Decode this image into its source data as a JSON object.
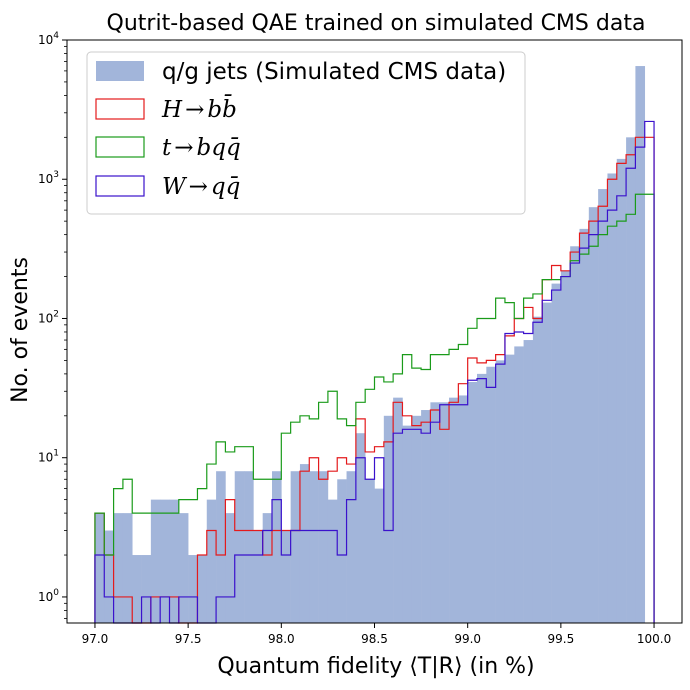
{
  "chart_data": {
    "type": "histogram",
    "title": "Qutrit-based QAE trained on simulated CMS data",
    "xlabel": "Quantum fidelity ⟨T|R⟩ (in %)",
    "ylabel": "No. of events",
    "xlim": [
      96.85,
      100.15
    ],
    "ylim": [
      0.65,
      10000
    ],
    "yscale": "log",
    "x_ticks": [
      "97.0",
      "97.5",
      "98.0",
      "98.5",
      "99.0",
      "99.5",
      "100.0"
    ],
    "y_ticks": [
      "10^0",
      "10^1",
      "10^2",
      "10^3",
      "10^4"
    ],
    "legend_position": "upper-left",
    "bins": {
      "start": 97.0,
      "width": 0.05,
      "count": 60
    },
    "series": [
      {
        "name": "q/g jets (Simulated CMS data)",
        "style": "filled",
        "color": "#a2b5da",
        "values": [
          4,
          3,
          4,
          4,
          2,
          2,
          5,
          5,
          5,
          4,
          2,
          2,
          5,
          8,
          4,
          8,
          8,
          3,
          4,
          8,
          3,
          8,
          9,
          8,
          8,
          5,
          7,
          8,
          15,
          7,
          6,
          20,
          27,
          17,
          20,
          22,
          25,
          25,
          27,
          28,
          35,
          40,
          45,
          50,
          55,
          63,
          70,
          103,
          130,
          178,
          220,
          330,
          440,
          630,
          850,
          1100,
          1400,
          2000,
          6500,
          0
        ]
      },
      {
        "name": "H → bb̄",
        "label_main": "H",
        "label_rest": "bb̄",
        "style": "step",
        "color": "#e41a1c",
        "values": [
          4,
          2,
          1,
          1,
          0,
          0,
          1,
          1,
          1,
          0,
          0,
          2,
          3,
          2,
          5,
          3,
          3,
          3,
          2,
          3,
          3,
          3,
          8,
          10,
          7,
          8,
          10,
          9,
          19,
          11,
          12,
          13,
          25,
          20,
          17,
          18,
          22,
          16,
          25,
          34,
          52,
          48,
          50,
          55,
          75,
          100,
          120,
          100,
          190,
          240,
          220,
          300,
          410,
          500,
          640,
          1000,
          1300,
          1500,
          2000,
          2000
        ]
      },
      {
        "name": "t → bqq̄",
        "label_main": "t",
        "label_rest": "bqq̄",
        "style": "step",
        "color": "#1a9b1a",
        "values": [
          4,
          2,
          6,
          7,
          4,
          4,
          4,
          4,
          4,
          5,
          5,
          6,
          9,
          13,
          11,
          12,
          12,
          7,
          7,
          7,
          15,
          18,
          20,
          19,
          25,
          30,
          19,
          17,
          25,
          31,
          38,
          35,
          40,
          55,
          44,
          43,
          55,
          55,
          60,
          65,
          85,
          100,
          100,
          140,
          130,
          100,
          140,
          150,
          190,
          190,
          200,
          260,
          290,
          330,
          400,
          460,
          500,
          560,
          780,
          780
        ]
      },
      {
        "name": "W → qq̄",
        "label_main": "W",
        "label_rest": "qq̄",
        "style": "step",
        "color": "#3a11cc",
        "values": [
          2,
          1,
          0,
          0,
          0,
          1,
          0,
          1,
          0,
          1,
          1,
          0,
          0,
          1,
          1,
          2,
          2,
          2,
          3,
          5,
          2,
          3,
          3,
          3,
          3,
          3,
          2,
          5,
          10,
          7,
          10,
          3,
          15,
          16,
          16,
          15,
          18,
          24,
          24,
          24,
          36,
          37,
          32,
          47,
          78,
          80,
          78,
          94,
          135,
          160,
          200,
          250,
          320,
          400,
          500,
          600,
          760,
          1200,
          1700,
          2600
        ]
      }
    ]
  }
}
